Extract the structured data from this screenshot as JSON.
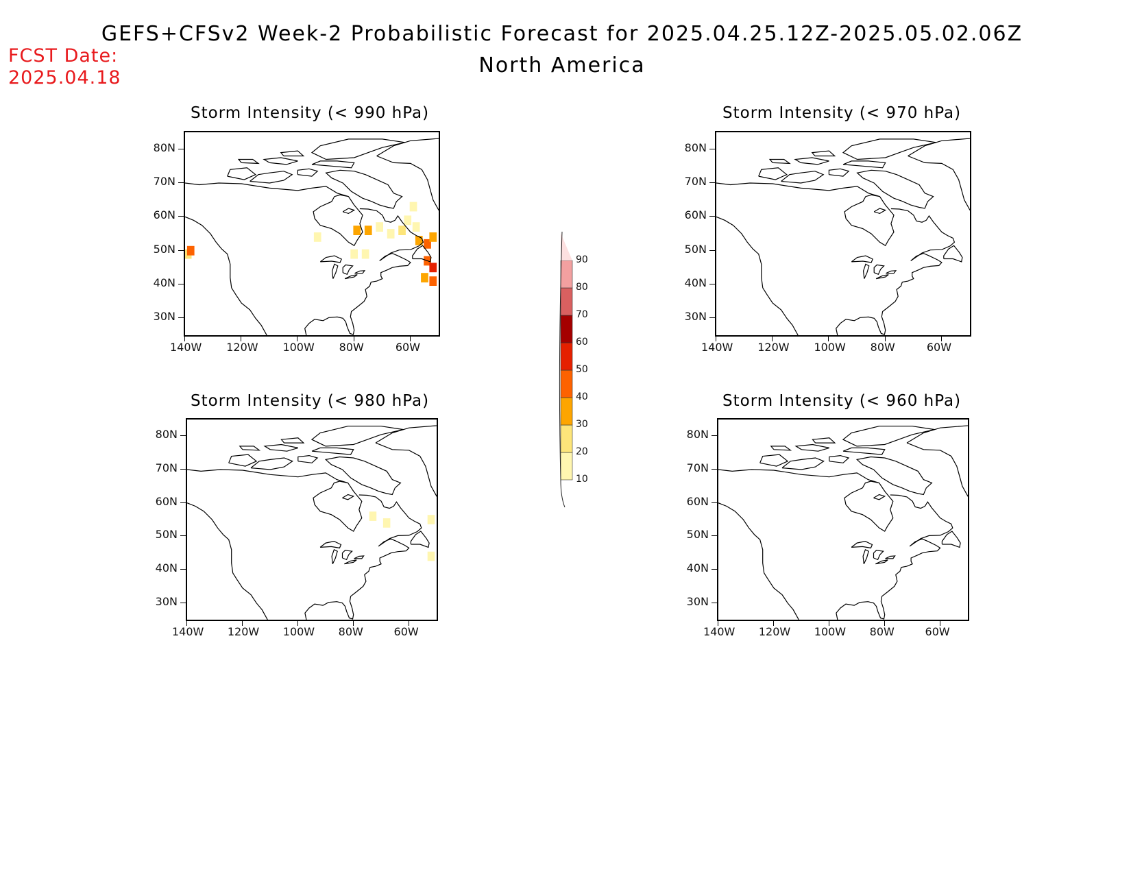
{
  "header": {
    "title": "GEFS+CFSv2 Week-2 Probabilistic Forecast for 2025.04.25.12Z-2025.05.02.06Z",
    "subtitle": "North America",
    "fcst_label": "FCST Date:",
    "fcst_date": "2025.04.18"
  },
  "colors": {
    "fcst_text": "#e8191c",
    "levels": [
      "#fff6b0",
      "#fde57a",
      "#fda500",
      "#fd6200",
      "#e52000",
      "#a40000",
      "#d96060",
      "#f2a0a0",
      "#fde0e0"
    ]
  },
  "axes": {
    "lat_labels": [
      "80N",
      "70N",
      "60N",
      "50N",
      "40N",
      "30N"
    ],
    "lat_values": [
      80,
      70,
      60,
      50,
      40,
      30
    ],
    "lon_labels": [
      "140W",
      "120W",
      "100W",
      "80W",
      "60W"
    ],
    "lon_values": [
      -140,
      -120,
      -100,
      -80,
      -60
    ],
    "lat_range": [
      25,
      85
    ],
    "lon_range": [
      -140,
      -50
    ]
  },
  "colorbar": {
    "labels": [
      "10",
      "20",
      "30",
      "40",
      "50",
      "60",
      "70",
      "80",
      "90"
    ],
    "levels": [
      10,
      20,
      30,
      40,
      50,
      60,
      70,
      80,
      90
    ]
  },
  "panels": [
    {
      "id": "p990",
      "title": "Storm Intensity (< 990 hPa)",
      "cells": [
        {
          "lon": -139,
          "lat": 49,
          "level": 2
        },
        {
          "lon": -138,
          "lat": 50,
          "level": 4
        },
        {
          "lon": -93,
          "lat": 54,
          "level": 1
        },
        {
          "lon": -80,
          "lat": 49,
          "level": 1
        },
        {
          "lon": -76,
          "lat": 49,
          "level": 1
        },
        {
          "lon": -79,
          "lat": 56,
          "level": 3
        },
        {
          "lon": -75,
          "lat": 56,
          "level": 3
        },
        {
          "lon": -71,
          "lat": 57,
          "level": 1
        },
        {
          "lon": -67,
          "lat": 55,
          "level": 1
        },
        {
          "lon": -63,
          "lat": 56,
          "level": 2
        },
        {
          "lon": -61,
          "lat": 59,
          "level": 1
        },
        {
          "lon": -58,
          "lat": 57,
          "level": 1
        },
        {
          "lon": -59,
          "lat": 63,
          "level": 1
        },
        {
          "lon": -57,
          "lat": 53,
          "level": 3
        },
        {
          "lon": -54,
          "lat": 52,
          "level": 4
        },
        {
          "lon": -52,
          "lat": 54,
          "level": 3
        },
        {
          "lon": -54,
          "lat": 47,
          "level": 4
        },
        {
          "lon": -52,
          "lat": 45,
          "level": 5
        },
        {
          "lon": -55,
          "lat": 42,
          "level": 3
        },
        {
          "lon": -52,
          "lat": 41,
          "level": 4
        }
      ]
    },
    {
      "id": "p970",
      "title": "Storm Intensity (< 970 hPa)",
      "cells": []
    },
    {
      "id": "p980",
      "title": "Storm Intensity (< 980 hPa)",
      "cells": [
        {
          "lon": -73,
          "lat": 56,
          "level": 1
        },
        {
          "lon": -68,
          "lat": 54,
          "level": 1
        },
        {
          "lon": -52,
          "lat": 55,
          "level": 1
        },
        {
          "lon": -52,
          "lat": 44,
          "level": 1
        }
      ]
    },
    {
      "id": "p960",
      "title": "Storm Intensity (< 960 hPa)",
      "cells": []
    }
  ]
}
